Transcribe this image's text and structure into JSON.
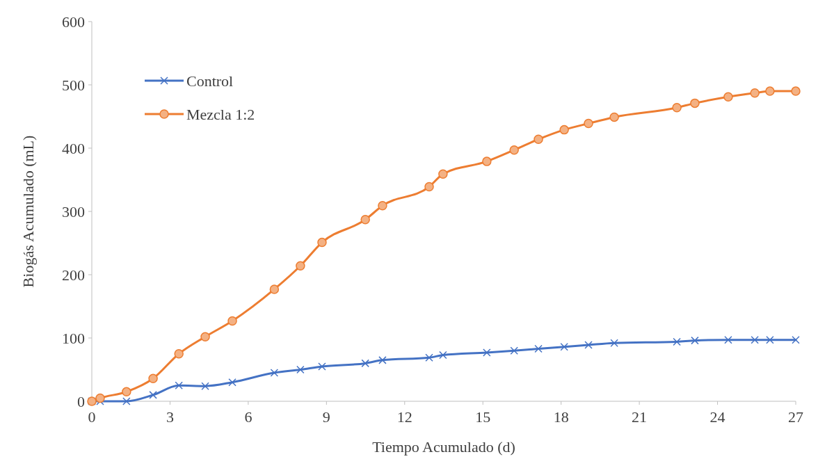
{
  "chart_data": {
    "type": "line",
    "xlabel": "Tiempo Acumulado (d)",
    "ylabel": "Biogás Acumulado (mL)",
    "x": [
      0,
      0.32,
      1.33,
      2.35,
      3.34,
      4.35,
      5.39,
      7.0,
      8.0,
      8.83,
      10.49,
      11.15,
      12.94,
      13.47,
      15.15,
      16.2,
      17.13,
      18.12,
      19.05,
      20.04,
      22.44,
      23.13,
      24.41,
      25.43,
      26.01,
      27
    ],
    "series": [
      {
        "name": "Control",
        "color": "#4472c4",
        "marker": "cross",
        "values": [
          0,
          0,
          0,
          10,
          25,
          24,
          30,
          45,
          50,
          55,
          60,
          65,
          69,
          73,
          77,
          80,
          83,
          86,
          89,
          92,
          94,
          96,
          97,
          97,
          97,
          97
        ]
      },
      {
        "name": "Mezcla 1:2",
        "color": "#ed7d31",
        "marker": "circle",
        "values": [
          0,
          5,
          15,
          36,
          75,
          102,
          127,
          177,
          214,
          251,
          287,
          309,
          339,
          359,
          379,
          397,
          414,
          429,
          439,
          449,
          464,
          471,
          481,
          487,
          490,
          490
        ]
      }
    ],
    "xlim": [
      0,
      27
    ],
    "xticks": [
      0,
      3,
      6,
      9,
      12,
      15,
      18,
      21,
      24,
      27
    ],
    "ylim": [
      0,
      600
    ],
    "yticks": [
      0,
      100,
      200,
      300,
      400,
      500,
      600
    ],
    "grid": false,
    "legend": "top left"
  }
}
